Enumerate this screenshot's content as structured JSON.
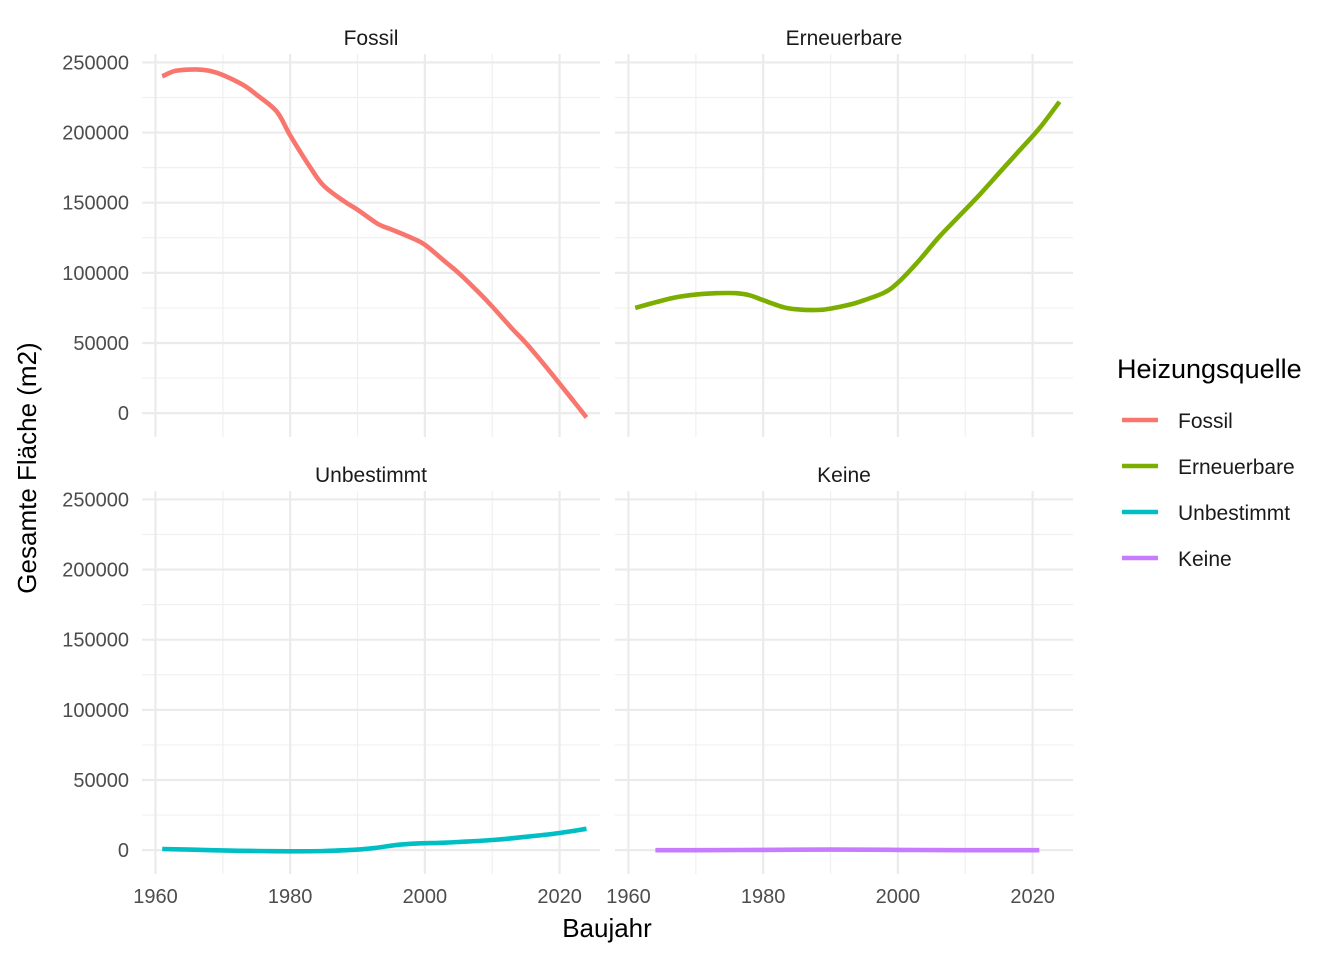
{
  "chart_data": {
    "type": "line",
    "xlabel": "Baujahr",
    "ylabel": "Gesamte Fläche (m2)",
    "xlim": [
      1958,
      2026
    ],
    "ylim": [
      -17000,
      256000
    ],
    "x_ticks": [
      1960,
      1980,
      2000,
      2020
    ],
    "y_ticks": [
      0,
      50000,
      100000,
      150000,
      200000,
      250000
    ],
    "grid": true,
    "legend": {
      "title": "Heizungsquelle",
      "placement": "right"
    },
    "series": [
      {
        "name": "Fossil",
        "color": "#F8766D",
        "x": [
          1961,
          1963,
          1966,
          1968,
          1970,
          1973,
          1975,
          1978,
          1980,
          1983,
          1985,
          1988,
          1990,
          1993,
          1995,
          1998,
          2000,
          2003,
          2005,
          2008,
          2010,
          2013,
          2015,
          2018,
          2020,
          2022,
          2024
        ],
        "y": [
          240000,
          244000,
          245000,
          244000,
          241000,
          234000,
          227000,
          215000,
          198000,
          175000,
          162000,
          151000,
          145000,
          135000,
          131000,
          125000,
          120000,
          108000,
          100000,
          86000,
          76000,
          60000,
          50000,
          33000,
          21000,
          9000,
          -3000
        ]
      },
      {
        "name": "Erneuerbare",
        "color": "#7CAE00",
        "x": [
          1961,
          1964,
          1967,
          1970,
          1973,
          1976,
          1978,
          1980,
          1983,
          1985,
          1988,
          1990,
          1993,
          1995,
          1998,
          2000,
          2003,
          2006,
          2009,
          2012,
          2015,
          2018,
          2021,
          2024
        ],
        "y": [
          75000,
          79000,
          82500,
          84500,
          85500,
          85500,
          84000,
          80500,
          75500,
          74000,
          73500,
          74500,
          77500,
          80500,
          86000,
          93000,
          108000,
          125000,
          140000,
          155000,
          171000,
          187000,
          203000,
          222000
        ]
      },
      {
        "name": "Unbestimmt",
        "color": "#00BFC4",
        "x": [
          1961,
          1965,
          1970,
          1975,
          1980,
          1985,
          1990,
          1993,
          1996,
          1999,
          2002,
          2005,
          2010,
          2015,
          2020,
          2024
        ],
        "y": [
          800,
          400,
          -200,
          -600,
          -800,
          -600,
          400,
          1800,
          3800,
          4800,
          5200,
          5800,
          7200,
          9500,
          12200,
          15200
        ]
      },
      {
        "name": "Keine",
        "color": "#C77CFF",
        "x": [
          1964,
          1970,
          1980,
          1990,
          2000,
          2010,
          2021
        ],
        "y": [
          0,
          0,
          200,
          400,
          200,
          0,
          0
        ]
      }
    ],
    "panels": [
      "Fossil",
      "Erneuerbare",
      "Unbestimmt",
      "Keine"
    ]
  }
}
